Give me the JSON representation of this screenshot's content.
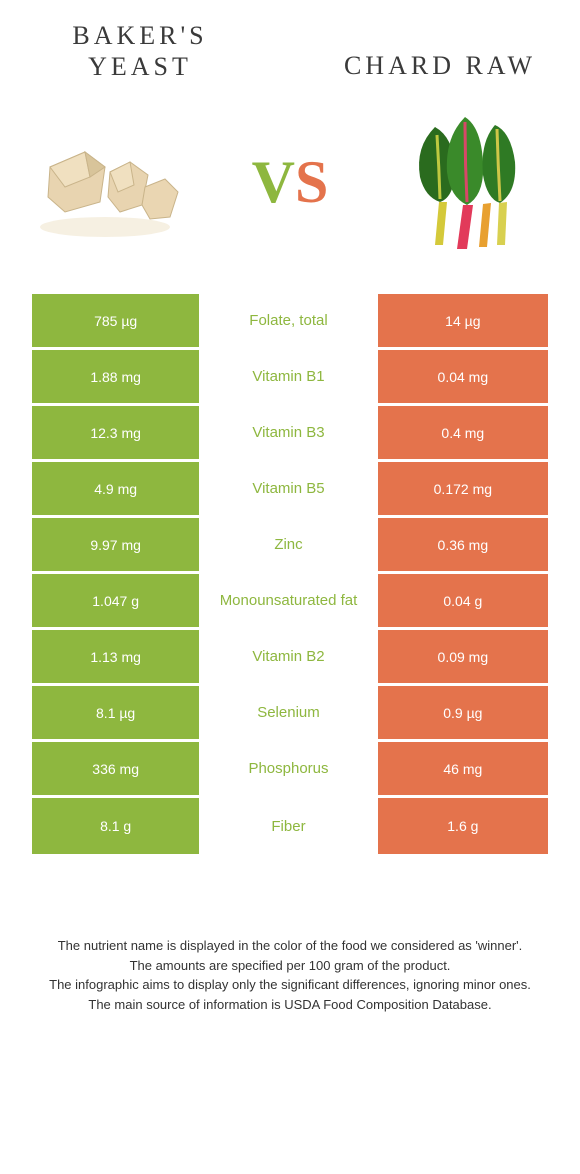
{
  "colors": {
    "left": "#8eb73f",
    "right": "#e4734c",
    "mid_text_winner_left": "#8eb73f",
    "mid_text_winner_right": "#e4734c"
  },
  "header": {
    "left_title_line1": "BAKER'S",
    "left_title_line2": "YEAST",
    "right_title": "CHARD RAW",
    "vs_v": "V",
    "vs_s": "S"
  },
  "rows": [
    {
      "left": "785 µg",
      "mid": "Folate, total",
      "right": "14 µg",
      "winner": "left"
    },
    {
      "left": "1.88 mg",
      "mid": "Vitamin B1",
      "right": "0.04 mg",
      "winner": "left"
    },
    {
      "left": "12.3 mg",
      "mid": "Vitamin B3",
      "right": "0.4 mg",
      "winner": "left"
    },
    {
      "left": "4.9 mg",
      "mid": "Vitamin B5",
      "right": "0.172 mg",
      "winner": "left"
    },
    {
      "left": "9.97 mg",
      "mid": "Zinc",
      "right": "0.36 mg",
      "winner": "left"
    },
    {
      "left": "1.047 g",
      "mid": "Monounsaturated fat",
      "right": "0.04 g",
      "winner": "left"
    },
    {
      "left": "1.13 mg",
      "mid": "Vitamin B2",
      "right": "0.09 mg",
      "winner": "left"
    },
    {
      "left": "8.1 µg",
      "mid": "Selenium",
      "right": "0.9 µg",
      "winner": "left"
    },
    {
      "left": "336 mg",
      "mid": "Phosphorus",
      "right": "46 mg",
      "winner": "left"
    },
    {
      "left": "8.1 g",
      "mid": "Fiber",
      "right": "1.6 g",
      "winner": "left"
    }
  ],
  "footer": {
    "line1": "The nutrient name is displayed in the color of the food we considered as 'winner'.",
    "line2": "The amounts are specified per 100 gram of the product.",
    "line3": "The infographic aims to display only the significant differences, ignoring minor ones.",
    "line4": "The main source of information is USDA Food Composition Database."
  }
}
